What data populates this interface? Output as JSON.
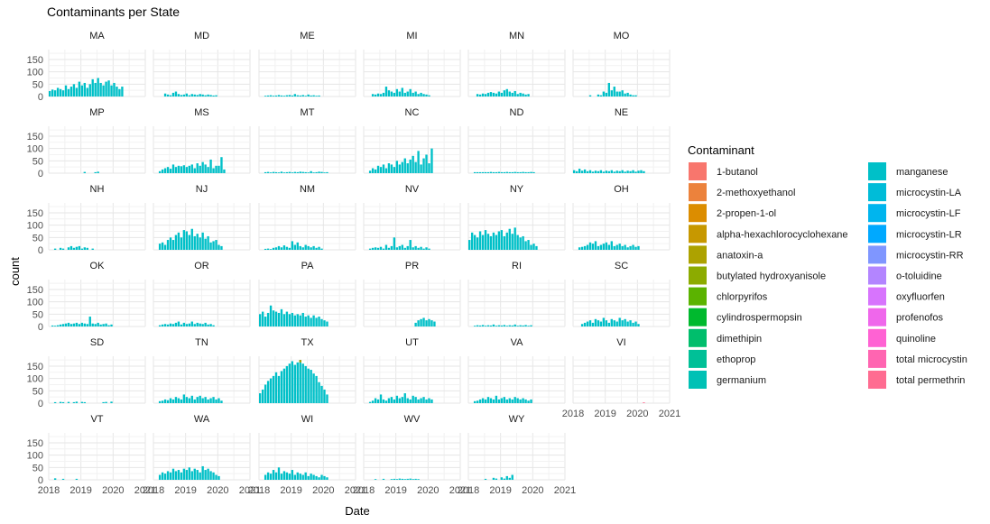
{
  "chart_data": {
    "type": "bar",
    "title": "Contaminants per State",
    "xlabel": "Date",
    "ylabel": "count",
    "x_ticks": [
      "2018",
      "2019",
      "2020",
      "2021"
    ],
    "x_range": [
      2018,
      2021
    ],
    "y_ticks": [
      0,
      50,
      100,
      150
    ],
    "ylim": [
      0,
      190
    ],
    "bin_width_years": 0.0833,
    "bin_start_year": 2018.0,
    "legend": {
      "title": "Contaminant",
      "placement": "right",
      "columns": 2,
      "entries": [
        {
          "name": "1-butanol",
          "color": "#F8766D"
        },
        {
          "name": "2-methoxyethanol",
          "color": "#EC823C"
        },
        {
          "name": "2-propen-1-ol",
          "color": "#DC8D00"
        },
        {
          "name": "alpha-hexachlorocyclohexane",
          "color": "#C79800"
        },
        {
          "name": "anatoxin-a",
          "color": "#ADA200"
        },
        {
          "name": "butylated hydroxyanisole",
          "color": "#8CAB00"
        },
        {
          "name": "chlorpyrifos",
          "color": "#5BB300"
        },
        {
          "name": "cylindrospermopsin",
          "color": "#00B92E"
        },
        {
          "name": "dimethipin",
          "color": "#00BE6C"
        },
        {
          "name": "ethoprop",
          "color": "#00C097"
        },
        {
          "name": "germanium",
          "color": "#00C1B5"
        },
        {
          "name": "manganese",
          "color": "#00C0C8"
        },
        {
          "name": "microcystin-LA",
          "color": "#00BCD8"
        },
        {
          "name": "microcystin-LF",
          "color": "#00B5EE"
        },
        {
          "name": "microcystin-LR",
          "color": "#00A9FF"
        },
        {
          "name": "microcystin-RR",
          "color": "#7F96FF"
        },
        {
          "name": "o-toluidine",
          "color": "#B385FF"
        },
        {
          "name": "oxyfluorfen",
          "color": "#D774FD"
        },
        {
          "name": "profenofos",
          "color": "#EF67EB"
        },
        {
          "name": "quinoline",
          "color": "#FF62D3"
        },
        {
          "name": "total microcystin",
          "color": "#FF65B1"
        },
        {
          "name": "total permethrin",
          "color": "#FF6C91"
        }
      ]
    },
    "panels": [
      {
        "state": "MA",
        "values": [
          22,
          28,
          25,
          35,
          30,
          25,
          45,
          30,
          40,
          50,
          35,
          60,
          45,
          55,
          35,
          50,
          70,
          55,
          75,
          55,
          45,
          60,
          65,
          45,
          55,
          40,
          30,
          40
        ]
      },
      {
        "state": "MD",
        "values": [
          0,
          0,
          0,
          0,
          12,
          8,
          5,
          15,
          20,
          10,
          6,
          8,
          12,
          5,
          10,
          8,
          6,
          10,
          8,
          5,
          8,
          6,
          4,
          5,
          0,
          0,
          0,
          0
        ]
      },
      {
        "state": "ME",
        "values": [
          0,
          0,
          3,
          4,
          5,
          3,
          4,
          6,
          4,
          3,
          5,
          6,
          4,
          10,
          5,
          4,
          6,
          3,
          8,
          4,
          5,
          3,
          4,
          0,
          0,
          0,
          0,
          0
        ]
      },
      {
        "state": "MI",
        "values": [
          0,
          0,
          0,
          10,
          8,
          12,
          10,
          15,
          40,
          25,
          20,
          15,
          30,
          20,
          35,
          15,
          20,
          30,
          15,
          20,
          10,
          15,
          10,
          8,
          5,
          0,
          0,
          0
        ]
      },
      {
        "state": "MN",
        "values": [
          0,
          0,
          0,
          10,
          8,
          12,
          10,
          15,
          18,
          15,
          12,
          20,
          15,
          25,
          30,
          20,
          15,
          22,
          10,
          15,
          12,
          8,
          10,
          0,
          0,
          0,
          0,
          0
        ]
      },
      {
        "state": "MO",
        "values": [
          0,
          0,
          0,
          0,
          0,
          0,
          5,
          0,
          0,
          8,
          5,
          20,
          15,
          55,
          25,
          40,
          20,
          20,
          25,
          12,
          15,
          8,
          5,
          5,
          0,
          0,
          0,
          0
        ]
      },
      {
        "state": "MP",
        "values": [
          0,
          0,
          0,
          0,
          0,
          0,
          0,
          0,
          0,
          0,
          0,
          0,
          0,
          5,
          0,
          0,
          0,
          4,
          6,
          0,
          0,
          0,
          0,
          0,
          0,
          0,
          0,
          0
        ]
      },
      {
        "state": "MS",
        "values": [
          0,
          0,
          8,
          15,
          20,
          25,
          18,
          35,
          25,
          30,
          28,
          32,
          25,
          30,
          35,
          20,
          40,
          30,
          45,
          35,
          25,
          55,
          20,
          30,
          30,
          65,
          15,
          0
        ]
      },
      {
        "state": "MT",
        "values": [
          0,
          0,
          4,
          5,
          3,
          5,
          4,
          3,
          6,
          3,
          4,
          5,
          3,
          5,
          4,
          6,
          5,
          4,
          3,
          8,
          3,
          4,
          6,
          5,
          3,
          4,
          0,
          0
        ]
      },
      {
        "state": "NC",
        "values": [
          0,
          0,
          10,
          20,
          15,
          30,
          25,
          35,
          20,
          40,
          35,
          25,
          50,
          35,
          45,
          60,
          40,
          55,
          70,
          45,
          90,
          35,
          60,
          75,
          40,
          100,
          0,
          0
        ]
      },
      {
        "state": "ND",
        "values": [
          0,
          0,
          4,
          4,
          4,
          4,
          4,
          4,
          5,
          4,
          4,
          5,
          4,
          4,
          5,
          4,
          4,
          5,
          4,
          4,
          5,
          4,
          4,
          5,
          4,
          0,
          0,
          0
        ]
      },
      {
        "state": "NE",
        "values": [
          12,
          8,
          18,
          10,
          15,
          8,
          12,
          6,
          10,
          8,
          12,
          6,
          10,
          8,
          12,
          6,
          10,
          8,
          12,
          6,
          10,
          8,
          12,
          6,
          10,
          12,
          8,
          0
        ]
      },
      {
        "state": "NH",
        "values": [
          0,
          0,
          5,
          0,
          8,
          5,
          0,
          10,
          15,
          8,
          12,
          15,
          5,
          10,
          8,
          0,
          5,
          0,
          0,
          0,
          0,
          0,
          0,
          0,
          0,
          0,
          0,
          0
        ]
      },
      {
        "state": "NJ",
        "values": [
          0,
          0,
          25,
          30,
          20,
          40,
          50,
          40,
          60,
          70,
          50,
          80,
          75,
          60,
          85,
          55,
          65,
          50,
          70,
          45,
          55,
          30,
          35,
          40,
          20,
          15,
          0,
          0
        ]
      },
      {
        "state": "NM",
        "values": [
          0,
          0,
          4,
          5,
          3,
          8,
          10,
          15,
          10,
          18,
          12,
          8,
          35,
          20,
          30,
          15,
          10,
          20,
          15,
          10,
          15,
          8,
          12,
          5,
          0,
          0,
          0,
          0
        ]
      },
      {
        "state": "NV",
        "values": [
          0,
          0,
          5,
          8,
          10,
          8,
          12,
          5,
          20,
          8,
          15,
          50,
          10,
          15,
          20,
          8,
          15,
          40,
          10,
          15,
          8,
          12,
          5,
          10,
          5,
          0,
          0,
          0
        ]
      },
      {
        "state": "NY",
        "values": [
          40,
          70,
          60,
          50,
          75,
          60,
          80,
          65,
          55,
          70,
          60,
          75,
          80,
          55,
          70,
          85,
          65,
          90,
          60,
          50,
          55,
          35,
          40,
          20,
          25,
          15,
          0,
          0
        ]
      },
      {
        "state": "OH",
        "values": [
          0,
          0,
          10,
          12,
          15,
          20,
          30,
          25,
          35,
          15,
          20,
          25,
          30,
          20,
          35,
          15,
          20,
          25,
          15,
          20,
          10,
          15,
          20,
          12,
          15,
          0,
          0,
          0
        ]
      },
      {
        "state": "OK",
        "values": [
          0,
          4,
          3,
          5,
          8,
          10,
          12,
          15,
          10,
          12,
          15,
          10,
          15,
          12,
          10,
          40,
          12,
          10,
          15,
          8,
          10,
          12,
          5,
          8,
          0,
          0,
          0,
          0
        ]
      },
      {
        "state": "OR",
        "values": [
          0,
          0,
          5,
          8,
          10,
          8,
          12,
          10,
          15,
          20,
          8,
          15,
          10,
          12,
          20,
          10,
          15,
          12,
          10,
          15,
          8,
          10,
          5,
          0,
          0,
          0,
          0,
          0
        ]
      },
      {
        "state": "PA",
        "values": [
          50,
          60,
          40,
          55,
          85,
          65,
          60,
          55,
          70,
          50,
          60,
          50,
          55,
          45,
          50,
          45,
          55,
          40,
          45,
          35,
          45,
          35,
          40,
          30,
          25,
          20,
          0,
          0
        ]
      },
      {
        "state": "PR",
        "values": [
          0,
          0,
          0,
          0,
          0,
          0,
          0,
          0,
          0,
          0,
          0,
          0,
          0,
          0,
          0,
          0,
          0,
          0,
          0,
          15,
          25,
          30,
          35,
          25,
          30,
          25,
          20,
          0
        ],
        "x_offset": 2
      },
      {
        "state": "RI",
        "values": [
          0,
          0,
          3,
          5,
          4,
          6,
          3,
          5,
          4,
          8,
          3,
          5,
          4,
          6,
          3,
          5,
          4,
          8,
          3,
          5,
          4,
          6,
          3,
          5,
          0,
          0,
          0,
          0
        ]
      },
      {
        "state": "SC",
        "values": [
          0,
          0,
          0,
          10,
          15,
          20,
          25,
          15,
          30,
          25,
          20,
          35,
          25,
          15,
          30,
          25,
          20,
          35,
          25,
          30,
          20,
          25,
          15,
          20,
          10,
          0,
          0,
          0
        ]
      },
      {
        "state": "SD",
        "values": [
          0,
          0,
          4,
          0,
          5,
          4,
          0,
          5,
          0,
          4,
          6,
          0,
          5,
          4,
          0,
          0,
          0,
          0,
          0,
          0,
          4,
          5,
          0,
          6,
          0,
          0,
          0,
          0
        ]
      },
      {
        "state": "TN",
        "values": [
          0,
          0,
          8,
          10,
          15,
          12,
          20,
          15,
          25,
          20,
          15,
          35,
          25,
          20,
          30,
          15,
          25,
          30,
          20,
          25,
          15,
          20,
          25,
          15,
          20,
          10,
          0,
          0
        ]
      },
      {
        "state": "TX",
        "values": [
          40,
          55,
          75,
          90,
          100,
          110,
          125,
          110,
          130,
          140,
          150,
          160,
          170,
          155,
          165,
          175,
          160,
          150,
          140,
          135,
          120,
          110,
          85,
          70,
          55,
          35,
          0,
          0
        ],
        "highlight_peak": 175
      },
      {
        "state": "UT",
        "values": [
          0,
          0,
          5,
          10,
          20,
          15,
          35,
          15,
          10,
          20,
          25,
          15,
          30,
          20,
          25,
          40,
          20,
          15,
          30,
          25,
          15,
          20,
          25,
          15,
          20,
          15,
          0,
          0
        ]
      },
      {
        "state": "VA",
        "values": [
          0,
          0,
          8,
          10,
          15,
          20,
          15,
          25,
          20,
          15,
          30,
          15,
          20,
          25,
          15,
          20,
          15,
          25,
          20,
          15,
          20,
          15,
          10,
          15,
          0,
          0,
          0,
          0
        ]
      },
      {
        "state": "VI",
        "values": [
          0,
          0,
          0,
          0,
          0,
          0,
          0,
          0,
          0,
          0,
          0,
          0,
          0,
          0,
          0,
          0,
          0,
          0,
          0,
          0,
          0,
          0,
          0,
          0,
          0,
          0,
          3,
          0
        ],
        "bar_color": "#FF6C91"
      },
      {
        "state": "VT",
        "values": [
          0,
          0,
          6,
          0,
          0,
          4,
          0,
          0,
          0,
          0,
          4,
          0,
          0,
          0,
          0,
          0,
          0,
          0,
          0,
          0,
          0,
          0,
          0,
          0,
          0,
          0,
          0,
          0
        ]
      },
      {
        "state": "WA",
        "values": [
          0,
          0,
          20,
          30,
          25,
          35,
          30,
          45,
          35,
          40,
          30,
          45,
          40,
          50,
          35,
          45,
          40,
          30,
          55,
          40,
          45,
          35,
          30,
          20,
          15,
          0,
          0,
          0
        ]
      },
      {
        "state": "WI",
        "values": [
          0,
          0,
          20,
          30,
          25,
          40,
          30,
          50,
          25,
          35,
          30,
          25,
          40,
          20,
          30,
          25,
          20,
          30,
          15,
          25,
          20,
          15,
          10,
          20,
          15,
          10,
          0,
          0
        ]
      },
      {
        "state": "WV",
        "values": [
          0,
          0,
          0,
          0,
          3,
          0,
          0,
          4,
          0,
          0,
          3,
          4,
          3,
          5,
          4,
          3,
          4,
          5,
          3,
          4,
          3,
          0,
          0,
          0,
          0,
          0,
          0,
          0
        ]
      },
      {
        "state": "WY",
        "values": [
          0,
          0,
          0,
          0,
          0,
          0,
          4,
          0,
          0,
          8,
          5,
          0,
          10,
          5,
          15,
          8,
          20,
          0,
          0,
          0,
          0,
          0,
          0,
          0,
          0,
          0,
          0,
          0
        ]
      }
    ]
  }
}
